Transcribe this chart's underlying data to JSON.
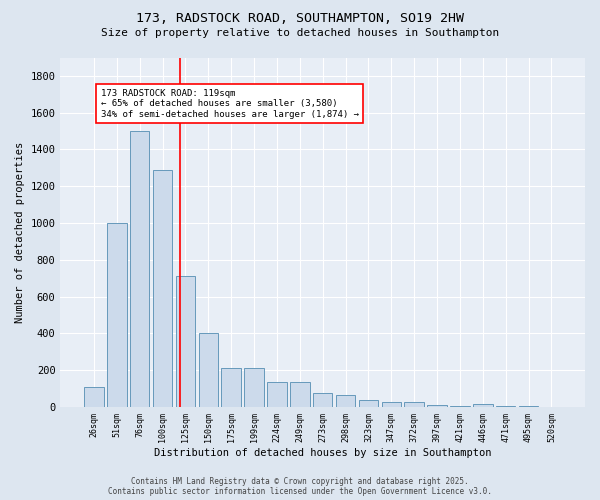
{
  "title1": "173, RADSTOCK ROAD, SOUTHAMPTON, SO19 2HW",
  "title2": "Size of property relative to detached houses in Southampton",
  "xlabel": "Distribution of detached houses by size in Southampton",
  "ylabel": "Number of detached properties",
  "categories": [
    "26sqm",
    "51sqm",
    "76sqm",
    "100sqm",
    "125sqm",
    "150sqm",
    "175sqm",
    "199sqm",
    "224sqm",
    "249sqm",
    "273sqm",
    "298sqm",
    "323sqm",
    "347sqm",
    "372sqm",
    "397sqm",
    "421sqm",
    "446sqm",
    "471sqm",
    "495sqm",
    "520sqm"
  ],
  "values": [
    110,
    1000,
    1500,
    1290,
    710,
    405,
    215,
    215,
    135,
    135,
    75,
    65,
    40,
    30,
    25,
    10,
    8,
    15,
    5,
    8,
    0
  ],
  "bar_color": "#ccdaeb",
  "bar_edge_color": "#6699bb",
  "vline_x": 3.75,
  "vline_color": "red",
  "annotation_text": "173 RADSTOCK ROAD: 119sqm\n← 65% of detached houses are smaller (3,580)\n34% of semi-detached houses are larger (1,874) →",
  "ylim": [
    0,
    1900
  ],
  "yticks": [
    0,
    200,
    400,
    600,
    800,
    1000,
    1200,
    1400,
    1600,
    1800
  ],
  "bg_color": "#dde6f0",
  "plot_bg_color": "#e8eef6",
  "grid_color": "#ffffff",
  "footer": "Contains HM Land Registry data © Crown copyright and database right 2025.\nContains public sector information licensed under the Open Government Licence v3.0."
}
